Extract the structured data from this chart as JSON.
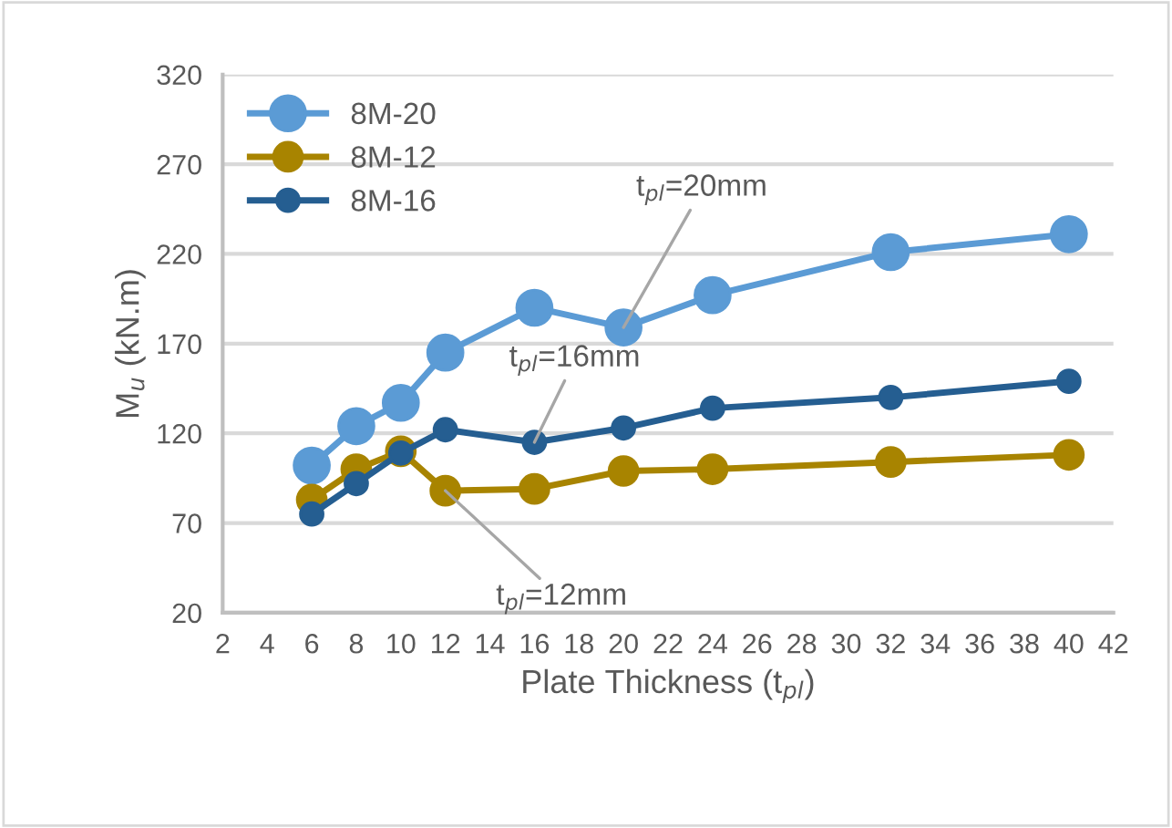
{
  "chart_data": {
    "type": "line",
    "xlabel": "Plate Thickness (t$_{pl}$)",
    "ylabel": "M$_{u}$ (kN.m)",
    "x": [
      6,
      8,
      10,
      12,
      16,
      20,
      24,
      32,
      40
    ],
    "series": [
      {
        "name": "8M-20",
        "color": "#5b9bd5",
        "values": [
          102,
          124,
          137,
          165,
          190,
          179,
          197,
          221,
          231
        ]
      },
      {
        "name": "8M-12",
        "color": "#a88400",
        "values": [
          83,
          100,
          110,
          88,
          89,
          99,
          100,
          104,
          108
        ]
      },
      {
        "name": "8M-16",
        "color": "#255e91",
        "values": [
          75,
          92,
          109,
          122,
          115,
          123,
          134,
          140,
          149
        ]
      }
    ],
    "xlim": [
      2,
      42
    ],
    "xticks": [
      2,
      4,
      6,
      8,
      10,
      12,
      14,
      16,
      18,
      20,
      22,
      24,
      26,
      28,
      30,
      32,
      34,
      36,
      38,
      40,
      42
    ],
    "ylim": [
      20,
      320
    ],
    "yticks": [
      20,
      70,
      120,
      170,
      220,
      270,
      320
    ],
    "grid": "y",
    "legend": "top left",
    "marker": "circle",
    "line_style": "solid",
    "annotations": [
      {
        "text": "t$_{pl}$=20mm",
        "x": 20,
        "y": 179
      },
      {
        "text": "t$_{pl}$=16mm",
        "x": 16,
        "y": 115
      },
      {
        "text": "t$_{pl}$=12mm",
        "x": 12,
        "y": 88
      }
    ]
  }
}
